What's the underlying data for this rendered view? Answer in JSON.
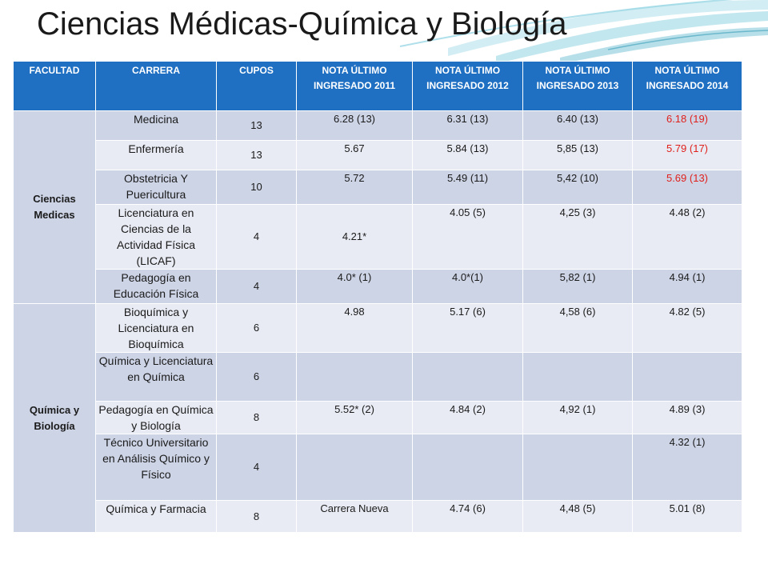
{
  "title": "Ciencias Médicas-Química y Biología",
  "colors": {
    "header_bg": "#1f6fc2",
    "row_dark": "#cdd4e6",
    "row_light": "#e8ebf3",
    "highlight_red": "#e0201b"
  },
  "headers": {
    "facultad": "FACULTAD",
    "carrera": "CARRERA",
    "cupos": "CUPOS",
    "nota_2011": "NOTA ÚLTIMO INGRESADO 2011",
    "nota_2012": "NOTA ÚLTIMO INGRESADO 2012",
    "nota_2013": "NOTA ÚLTIMO INGRESADO 2013",
    "nota_2014": "NOTA ÚLTIMO INGRESADO 2014"
  },
  "groups": [
    {
      "facultad": "Ciencias Medicas",
      "rows": [
        {
          "carrera": "Medicina",
          "cupos": "13",
          "n2011": "6.28 (13)",
          "n2012": "6.31  (13)",
          "n2013": "6.40 (13)",
          "n2014": "6.18 (19)"
        },
        {
          "carrera": "Enfermería",
          "cupos": "13",
          "n2011": "5.67",
          "n2012": "5.84 (13)",
          "n2013": "5,85 (13)",
          "n2014": "5.79 (17)"
        },
        {
          "carrera": "Obstetricia Y Puericultura",
          "cupos": "10",
          "n2011": "5.72",
          "n2012": "5.49 (11)",
          "n2013": "5,42 (10)",
          "n2014": "5.69 (13)"
        },
        {
          "carrera": "Licenciatura en Ciencias de la Actividad Física (LICAF)",
          "cupos": "4",
          "n2011": "4.21*",
          "n2012": "4.05 (5)",
          "n2013": "4,25 (3)",
          "n2014": "4.48 (2)"
        },
        {
          "carrera": "Pedagogía en Educación Física",
          "cupos": "4",
          "n2011": "4.0* (1)",
          "n2012": "4.0*(1)",
          "n2013": "5,82 (1)",
          "n2014": "4.94 (1)"
        }
      ]
    },
    {
      "facultad": "Química y Biología",
      "rows": [
        {
          "carrera": "Bioquímica y Licenciatura en Bioquímica",
          "cupos": "6",
          "n2011": "4.98",
          "n2012": "5.17 (6)",
          "n2013": "4,58 (6)",
          "n2014": "4.82 (5)"
        },
        {
          "carrera": "Química y Licenciatura en Química",
          "cupos": "6",
          "n2011": "",
          "n2012": "",
          "n2013": "",
          "n2014": ""
        },
        {
          "carrera": "Pedagogía en Química y Biología",
          "cupos": "8",
          "n2011": "5.52* (2)",
          "n2012": "4.84 (2)",
          "n2013": "4,92 (1)",
          "n2014": "4.89 (3)"
        },
        {
          "carrera": "Técnico Universitario en Análisis Químico y Físico",
          "cupos": "4",
          "n2011": "",
          "n2012": "",
          "n2013": "",
          "n2014": "4.32 (1)"
        },
        {
          "carrera": "Química y Farmacia",
          "cupos": "8",
          "n2011": "Carrera Nueva",
          "n2012": "4.74 (6)",
          "n2013": "4,48 (5)",
          "n2014": "5.01 (8)"
        }
      ]
    }
  ]
}
